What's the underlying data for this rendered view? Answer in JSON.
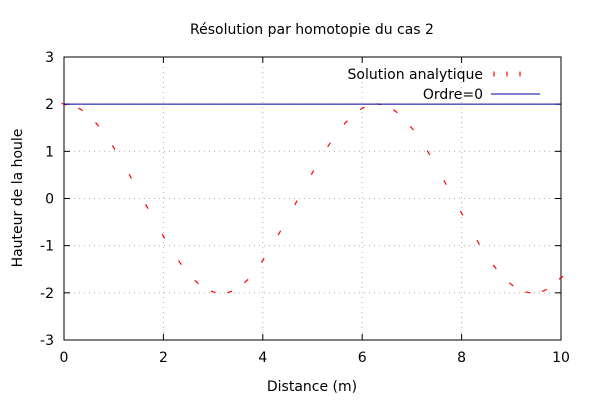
{
  "chart_data": {
    "type": "line",
    "title": "Résolution par homotopie du cas 2",
    "xlabel": "Distance (m)",
    "ylabel": "Hauteur de la houle",
    "xlim": [
      0,
      10
    ],
    "ylim": [
      -3,
      3
    ],
    "xticks": [
      0,
      2,
      4,
      6,
      8,
      10
    ],
    "yticks": [
      -3,
      -2,
      -1,
      0,
      1,
      2,
      3
    ],
    "xtick_labels": [
      "0",
      "2",
      "4",
      "6",
      "8",
      "10"
    ],
    "ytick_labels": [
      "-3",
      "-2",
      "-1",
      "0",
      "1",
      "2",
      "3"
    ],
    "grid": true,
    "legend_position": "top-right",
    "series": [
      {
        "name": "Solution analytique",
        "style": "dotted-points",
        "color": "#ff0000",
        "x": [
          0,
          0.333,
          0.667,
          1.0,
          1.333,
          1.667,
          2.0,
          2.333,
          2.667,
          3.0,
          3.333,
          3.667,
          4.0,
          4.333,
          4.667,
          5.0,
          5.333,
          5.667,
          6.0,
          6.333,
          6.667,
          7.0,
          7.333,
          7.667,
          8.0,
          8.333,
          8.667,
          9.0,
          9.333,
          9.667,
          10.0
        ],
        "y": [
          2.0,
          1.89,
          1.57,
          1.08,
          0.47,
          -0.17,
          -0.8,
          -1.36,
          -1.77,
          -1.98,
          -1.98,
          -1.75,
          -1.31,
          -0.73,
          -0.09,
          0.55,
          1.14,
          1.61,
          1.91,
          2.0,
          1.85,
          1.49,
          0.97,
          0.34,
          -0.31,
          -0.93,
          -1.45,
          -1.82,
          -1.99,
          -1.95,
          -1.68
        ]
      },
      {
        "name": "Ordre=0",
        "style": "line",
        "color": "#0000a0",
        "x": [
          0,
          10
        ],
        "y": [
          2,
          2
        ]
      }
    ]
  }
}
